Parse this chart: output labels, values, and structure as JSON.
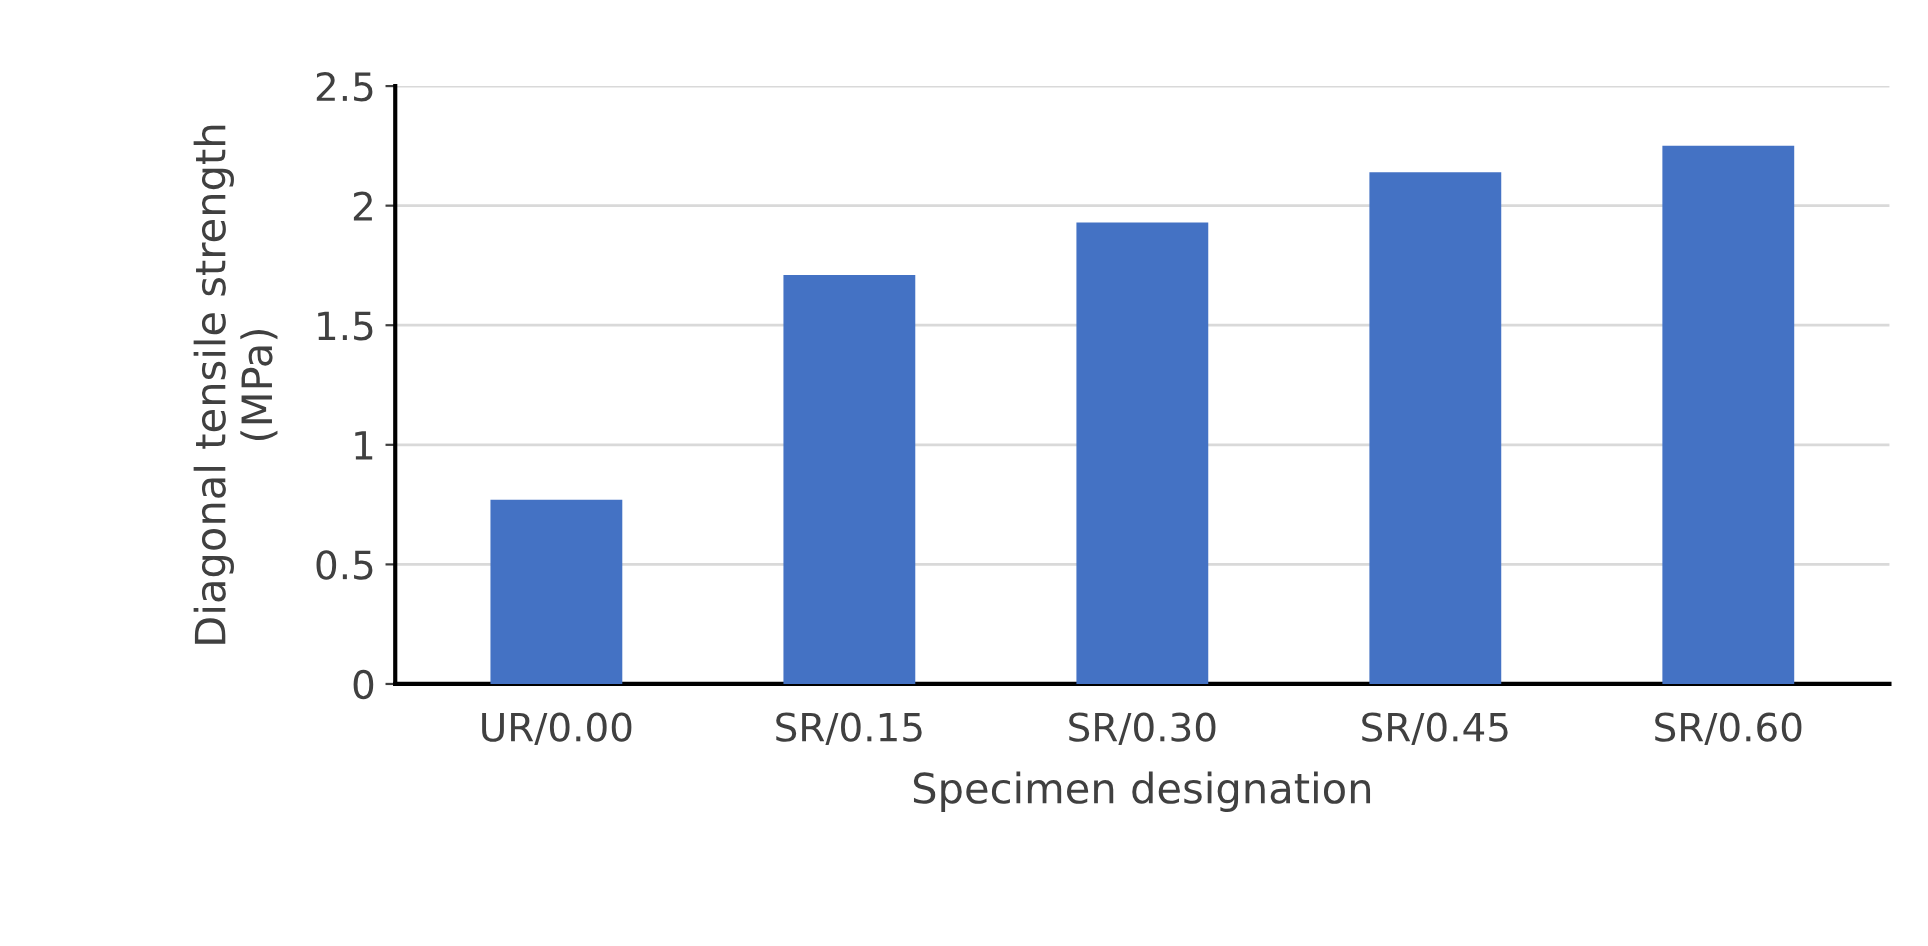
{
  "chart_data": {
    "type": "bar",
    "xlabel": "Specimen designation",
    "ylabel": "Diagonal tensile strength (MPa)",
    "categories": [
      "UR/0.00",
      "SR/0.15",
      "SR/0.30",
      "SR/0.45",
      "SR/0.60"
    ],
    "values": [
      0.77,
      1.71,
      1.93,
      2.14,
      2.25
    ],
    "color": "#4472c4",
    "ylim": [
      0,
      2.5
    ],
    "yticks": [
      0,
      0.5,
      1,
      1.5,
      2,
      2.5
    ],
    "grid": "y"
  }
}
